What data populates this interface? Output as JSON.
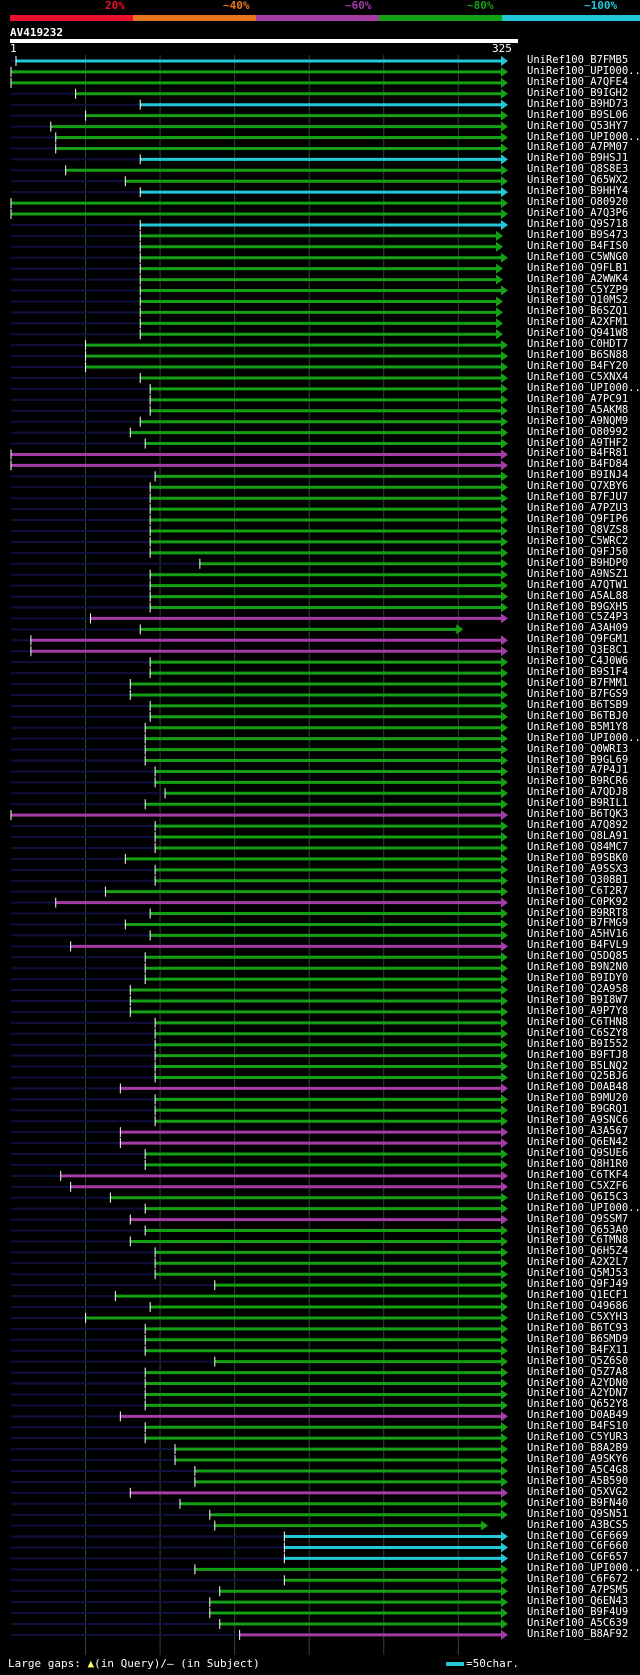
{
  "scale": {
    "labels": [
      "20%",
      "~40%",
      "~60%",
      "~80%",
      "~100%"
    ],
    "colors": [
      "#e8102a",
      "#e8761e",
      "#a43ca6",
      "#14a014",
      "#22c8d8"
    ]
  },
  "query": {
    "name": "AV419232",
    "start": "1",
    "end": "325"
  },
  "colors": {
    "cyan": "#22c8d8",
    "green": "#14a014",
    "magenta": "#a43ca6",
    "marker": "#ffff66",
    "dark": "#101040",
    "grid": "#2a4a2a"
  },
  "hits": [
    {
      "name": "UniRef100_B7FMB5",
      "c": "cyan",
      "s": 0.01,
      "e": 1.0
    },
    {
      "name": "UniRef100_UPI000...",
      "c": "green",
      "s": 0.0,
      "e": 1.0
    },
    {
      "name": "UniRef100_A7QFE4",
      "c": "green",
      "s": 0.0,
      "e": 1.0
    },
    {
      "name": "UniRef100_B9IGH2",
      "c": "green",
      "s": 0.13,
      "e": 1.0
    },
    {
      "name": "UniRef100_B9HD73",
      "c": "cyan",
      "s": 0.26,
      "e": 1.0
    },
    {
      "name": "UniRef100_B9SL06",
      "c": "green",
      "s": 0.15,
      "e": 1.0
    },
    {
      "name": "UniRef100_Q53HY7",
      "c": "green",
      "s": 0.08,
      "e": 1.0
    },
    {
      "name": "UniRef100_UPI000...",
      "c": "green",
      "s": 0.09,
      "e": 1.0
    },
    {
      "name": "UniRef100_A7PM07",
      "c": "green",
      "s": 0.09,
      "e": 1.0
    },
    {
      "name": "UniRef100_B9HSJ1",
      "c": "cyan",
      "s": 0.26,
      "e": 1.0
    },
    {
      "name": "UniRef100_Q8S8E3",
      "c": "green",
      "s": 0.11,
      "e": 1.0
    },
    {
      "name": "UniRef100_Q65WX2",
      "c": "green",
      "s": 0.23,
      "e": 1.0
    },
    {
      "name": "UniRef100_B9HHY4",
      "c": "cyan",
      "s": 0.26,
      "e": 1.0
    },
    {
      "name": "UniRef100_O80920",
      "c": "green",
      "s": 0.0,
      "e": 1.0
    },
    {
      "name": "UniRef100_A7Q3P6",
      "c": "green",
      "s": 0.0,
      "e": 1.0
    },
    {
      "name": "UniRef100_Q9S718",
      "c": "cyan",
      "s": 0.26,
      "e": 1.0
    },
    {
      "name": "UniRef100_B9S473",
      "c": "green",
      "s": 0.26,
      "e": 0.99
    },
    {
      "name": "UniRef100_B4FIS0",
      "c": "green",
      "s": 0.26,
      "e": 0.99
    },
    {
      "name": "UniRef100_C5WNG0",
      "c": "green",
      "s": 0.26,
      "e": 1.0
    },
    {
      "name": "UniRef100_Q9FLB1",
      "c": "green",
      "s": 0.26,
      "e": 0.99
    },
    {
      "name": "UniRef100_A2WWK4",
      "c": "green",
      "s": 0.26,
      "e": 0.99
    },
    {
      "name": "UniRef100_C5YZP9",
      "c": "green",
      "s": 0.26,
      "e": 1.0
    },
    {
      "name": "UniRef100_Q10MS2",
      "c": "green",
      "s": 0.26,
      "e": 0.99
    },
    {
      "name": "UniRef100_B6SZQ1",
      "c": "green",
      "s": 0.26,
      "e": 0.99
    },
    {
      "name": "UniRef100_A2XFM1",
      "c": "green",
      "s": 0.26,
      "e": 0.99
    },
    {
      "name": "UniRef100_Q941W8",
      "c": "green",
      "s": 0.26,
      "e": 0.99
    },
    {
      "name": "UniRef100_C0HDT7",
      "c": "green",
      "s": 0.15,
      "e": 1.0
    },
    {
      "name": "UniRef100_B6SN88",
      "c": "green",
      "s": 0.15,
      "e": 1.0
    },
    {
      "name": "UniRef100_B4FY20",
      "c": "green",
      "s": 0.15,
      "e": 1.0
    },
    {
      "name": "UniRef100_C5XNX4",
      "c": "green",
      "s": 0.26,
      "e": 1.0
    },
    {
      "name": "UniRef100_UPI000...",
      "c": "green",
      "s": 0.28,
      "e": 1.0
    },
    {
      "name": "UniRef100_A7PC91",
      "c": "green",
      "s": 0.28,
      "e": 1.0
    },
    {
      "name": "UniRef100_A5AKM8",
      "c": "green",
      "s": 0.28,
      "e": 1.0
    },
    {
      "name": "UniRef100_A9NQM9",
      "c": "green",
      "s": 0.26,
      "e": 1.0
    },
    {
      "name": "UniRef100_O80992",
      "c": "green",
      "s": 0.24,
      "e": 1.0
    },
    {
      "name": "UniRef100_A9THF2",
      "c": "green",
      "s": 0.27,
      "e": 1.0
    },
    {
      "name": "UniRef100_B4FR81",
      "c": "magenta",
      "s": 0.0,
      "e": 1.0
    },
    {
      "name": "UniRef100_B4FD84",
      "c": "magenta",
      "s": 0.0,
      "e": 1.0
    },
    {
      "name": "UniRef100_B9INJ4",
      "c": "green",
      "s": 0.29,
      "e": 1.0
    },
    {
      "name": "UniRef100_Q7XBY6",
      "c": "green",
      "s": 0.28,
      "e": 1.0
    },
    {
      "name": "UniRef100_B7FJU7",
      "c": "green",
      "s": 0.28,
      "e": 1.0
    },
    {
      "name": "UniRef100_A7PZU3",
      "c": "green",
      "s": 0.28,
      "e": 1.0
    },
    {
      "name": "UniRef100_Q9FIP6",
      "c": "green",
      "s": 0.28,
      "e": 1.0
    },
    {
      "name": "UniRef100_Q8VZS8",
      "c": "green",
      "s": 0.28,
      "e": 1.0
    },
    {
      "name": "UniRef100_C5WRC2",
      "c": "green",
      "s": 0.28,
      "e": 1.0
    },
    {
      "name": "UniRef100_Q9FJ50",
      "c": "green",
      "s": 0.28,
      "e": 1.0
    },
    {
      "name": "UniRef100_B9HDP0",
      "c": "green",
      "s": 0.38,
      "e": 1.0
    },
    {
      "name": "UniRef100_A9NSZ1",
      "c": "green",
      "s": 0.28,
      "e": 1.0
    },
    {
      "name": "UniRef100_A7QTW1",
      "c": "green",
      "s": 0.28,
      "e": 1.0
    },
    {
      "name": "UniRef100_A5AL88",
      "c": "green",
      "s": 0.28,
      "e": 1.0
    },
    {
      "name": "UniRef100_B9GXH5",
      "c": "green",
      "s": 0.28,
      "e": 1.0
    },
    {
      "name": "UniRef100_C5Z4P3",
      "c": "magenta",
      "s": 0.16,
      "e": 1.0
    },
    {
      "name": "UniRef100_A3AH09",
      "c": "green",
      "s": 0.26,
      "e": 0.91
    },
    {
      "name": "UniRef100_Q9FGM1",
      "c": "magenta",
      "s": 0.04,
      "e": 1.0
    },
    {
      "name": "UniRef100_Q3E8C1",
      "c": "magenta",
      "s": 0.04,
      "e": 1.0
    },
    {
      "name": "UniRef100_C4J0W6",
      "c": "green",
      "s": 0.28,
      "e": 1.0
    },
    {
      "name": "UniRef100_B9S1F4",
      "c": "green",
      "s": 0.28,
      "e": 1.0
    },
    {
      "name": "UniRef100_B7FMM1",
      "c": "green",
      "s": 0.24,
      "e": 1.0
    },
    {
      "name": "UniRef100_B7FGS9",
      "c": "green",
      "s": 0.24,
      "e": 1.0
    },
    {
      "name": "UniRef100_B6TSB9",
      "c": "green",
      "s": 0.28,
      "e": 1.0
    },
    {
      "name": "UniRef100_B6TBJ0",
      "c": "green",
      "s": 0.28,
      "e": 1.0
    },
    {
      "name": "UniRef100_B5M1Y8",
      "c": "green",
      "s": 0.27,
      "e": 1.0
    },
    {
      "name": "UniRef100_UPI000...",
      "c": "green",
      "s": 0.27,
      "e": 1.0
    },
    {
      "name": "UniRef100_Q0WRI3",
      "c": "green",
      "s": 0.27,
      "e": 1.0
    },
    {
      "name": "UniRef100_B9GL69",
      "c": "green",
      "s": 0.27,
      "e": 1.0
    },
    {
      "name": "UniRef100_A7P4J1",
      "c": "green",
      "s": 0.29,
      "e": 1.0
    },
    {
      "name": "UniRef100_B9RCR6",
      "c": "green",
      "s": 0.29,
      "e": 1.0
    },
    {
      "name": "UniRef100_A7QDJ8",
      "c": "green",
      "s": 0.31,
      "e": 1.0
    },
    {
      "name": "UniRef100_B9RIL1",
      "c": "green",
      "s": 0.27,
      "e": 1.0
    },
    {
      "name": "UniRef100_B6TQK3",
      "c": "magenta",
      "s": 0.0,
      "e": 1.0
    },
    {
      "name": "UniRef100_A7Q892",
      "c": "green",
      "s": 0.29,
      "e": 1.0
    },
    {
      "name": "UniRef100_Q8LA91",
      "c": "green",
      "s": 0.29,
      "e": 1.0
    },
    {
      "name": "UniRef100_Q84MC7",
      "c": "green",
      "s": 0.29,
      "e": 1.0
    },
    {
      "name": "UniRef100_B9SBK0",
      "c": "green",
      "s": 0.23,
      "e": 1.0
    },
    {
      "name": "UniRef100_A9SSX3",
      "c": "green",
      "s": 0.29,
      "e": 1.0
    },
    {
      "name": "UniRef100_Q308B1",
      "c": "green",
      "s": 0.29,
      "e": 1.0
    },
    {
      "name": "UniRef100_C6T2R7",
      "c": "green",
      "s": 0.19,
      "e": 1.0
    },
    {
      "name": "UniRef100_C0PK92",
      "c": "magenta",
      "s": 0.09,
      "e": 1.0
    },
    {
      "name": "UniRef100_B9RRT8",
      "c": "green",
      "s": 0.28,
      "e": 1.0
    },
    {
      "name": "UniRef100_B7FMG9",
      "c": "green",
      "s": 0.23,
      "e": 1.0
    },
    {
      "name": "UniRef100_A5HV16",
      "c": "green",
      "s": 0.28,
      "e": 1.0
    },
    {
      "name": "UniRef100_B4FVL9",
      "c": "magenta",
      "s": 0.12,
      "e": 1.0
    },
    {
      "name": "UniRef100_Q5DQ85",
      "c": "green",
      "s": 0.27,
      "e": 1.0
    },
    {
      "name": "UniRef100_B9N2N0",
      "c": "green",
      "s": 0.27,
      "e": 1.0
    },
    {
      "name": "UniRef100_B9IDY0",
      "c": "green",
      "s": 0.27,
      "e": 1.0
    },
    {
      "name": "UniRef100_Q2A958",
      "c": "green",
      "s": 0.24,
      "e": 1.0
    },
    {
      "name": "UniRef100_B9I8W7",
      "c": "green",
      "s": 0.24,
      "e": 1.0
    },
    {
      "name": "UniRef100_A9P7Y8",
      "c": "green",
      "s": 0.24,
      "e": 1.0
    },
    {
      "name": "UniRef100_C6THN8",
      "c": "green",
      "s": 0.29,
      "e": 1.0
    },
    {
      "name": "UniRef100_C6SZY8",
      "c": "green",
      "s": 0.29,
      "e": 1.0
    },
    {
      "name": "UniRef100_B9I552",
      "c": "green",
      "s": 0.29,
      "e": 1.0
    },
    {
      "name": "UniRef100_B9FTJ8",
      "c": "green",
      "s": 0.29,
      "e": 1.0
    },
    {
      "name": "UniRef100_B5LNQ2",
      "c": "green",
      "s": 0.29,
      "e": 1.0
    },
    {
      "name": "UniRef100_Q25BJ6",
      "c": "green",
      "s": 0.29,
      "e": 1.0
    },
    {
      "name": "UniRef100_D0AB48",
      "c": "magenta",
      "s": 0.22,
      "e": 1.0
    },
    {
      "name": "UniRef100_B9MU20",
      "c": "green",
      "s": 0.29,
      "e": 1.0
    },
    {
      "name": "UniRef100_B9GRQ1",
      "c": "green",
      "s": 0.29,
      "e": 1.0
    },
    {
      "name": "UniRef100_A9SNC6",
      "c": "green",
      "s": 0.29,
      "e": 1.0
    },
    {
      "name": "UniRef100_A3A567",
      "c": "magenta",
      "s": 0.22,
      "e": 1.0
    },
    {
      "name": "UniRef100_Q6EN42",
      "c": "magenta",
      "s": 0.22,
      "e": 1.0
    },
    {
      "name": "UniRef100_Q9SUE6",
      "c": "green",
      "s": 0.27,
      "e": 1.0
    },
    {
      "name": "UniRef100_Q8H1R0",
      "c": "green",
      "s": 0.27,
      "e": 1.0
    },
    {
      "name": "UniRef100_C6TKF4",
      "c": "magenta",
      "s": 0.1,
      "e": 1.0
    },
    {
      "name": "UniRef100_C5XZF6",
      "c": "magenta",
      "s": 0.12,
      "e": 1.0
    },
    {
      "name": "UniRef100_Q6I5C3",
      "c": "green",
      "s": 0.2,
      "e": 1.0
    },
    {
      "name": "UniRef100_UPI000...",
      "c": "green",
      "s": 0.27,
      "e": 1.0
    },
    {
      "name": "UniRef100_Q9SSM7",
      "c": "magenta",
      "s": 0.24,
      "e": 1.0
    },
    {
      "name": "UniRef100_Q653A0",
      "c": "green",
      "s": 0.27,
      "e": 1.0
    },
    {
      "name": "UniRef100_C6TMN8",
      "c": "green",
      "s": 0.24,
      "e": 1.0
    },
    {
      "name": "UniRef100_Q6H5Z4",
      "c": "green",
      "s": 0.29,
      "e": 1.0
    },
    {
      "name": "UniRef100_A2X2L7",
      "c": "green",
      "s": 0.29,
      "e": 1.0
    },
    {
      "name": "UniRef100_Q5MJ53",
      "c": "green",
      "s": 0.29,
      "e": 1.0
    },
    {
      "name": "UniRef100_Q9FJ49",
      "c": "green",
      "s": 0.41,
      "e": 1.0
    },
    {
      "name": "UniRef100_Q1ECF1",
      "c": "green",
      "s": 0.21,
      "e": 1.0
    },
    {
      "name": "UniRef100_O49686",
      "c": "green",
      "s": 0.28,
      "e": 1.0
    },
    {
      "name": "UniRef100_C5XYH3",
      "c": "green",
      "s": 0.15,
      "e": 1.0
    },
    {
      "name": "UniRef100_B6TC93",
      "c": "green",
      "s": 0.27,
      "e": 1.0
    },
    {
      "name": "UniRef100_B6SMD9",
      "c": "green",
      "s": 0.27,
      "e": 1.0
    },
    {
      "name": "UniRef100_B4FX11",
      "c": "green",
      "s": 0.27,
      "e": 1.0
    },
    {
      "name": "UniRef100_Q5Z6S0",
      "c": "green",
      "s": 0.41,
      "e": 1.0
    },
    {
      "name": "UniRef100_Q5Z7A8",
      "c": "green",
      "s": 0.27,
      "e": 1.0
    },
    {
      "name": "UniRef100_A2YDN0",
      "c": "green",
      "s": 0.27,
      "e": 1.0
    },
    {
      "name": "UniRef100_A2YDN7",
      "c": "green",
      "s": 0.27,
      "e": 1.0
    },
    {
      "name": "UniRef100_Q652Y8",
      "c": "green",
      "s": 0.27,
      "e": 1.0
    },
    {
      "name": "UniRef100_D0AB49",
      "c": "magenta",
      "s": 0.22,
      "e": 1.0
    },
    {
      "name": "UniRef100_B4FS10",
      "c": "green",
      "s": 0.27,
      "e": 1.0
    },
    {
      "name": "UniRef100_C5YUR3",
      "c": "green",
      "s": 0.27,
      "e": 1.0
    },
    {
      "name": "UniRef100_B8A2B9",
      "c": "green",
      "s": 0.33,
      "e": 1.0
    },
    {
      "name": "UniRef100_A9SKY6",
      "c": "green",
      "s": 0.33,
      "e": 1.0
    },
    {
      "name": "UniRef100_A5C4G8",
      "c": "green",
      "s": 0.37,
      "e": 1.0
    },
    {
      "name": "UniRef100_A5B590",
      "c": "green",
      "s": 0.37,
      "e": 1.0
    },
    {
      "name": "UniRef100_Q5XVG2",
      "c": "magenta",
      "s": 0.24,
      "e": 1.0
    },
    {
      "name": "UniRef100_B9FN40",
      "c": "green",
      "s": 0.34,
      "e": 1.0
    },
    {
      "name": "UniRef100_Q9SN51",
      "c": "green",
      "s": 0.4,
      "e": 1.0
    },
    {
      "name": "UniRef100_A3BCS5",
      "c": "green",
      "s": 0.41,
      "e": 0.96
    },
    {
      "name": "UniRef100_C6F669",
      "c": "cyan",
      "s": 0.55,
      "e": 1.0
    },
    {
      "name": "UniRef100_C6F660",
      "c": "cyan",
      "s": 0.55,
      "e": 1.0
    },
    {
      "name": "UniRef100_C6F657",
      "c": "cyan",
      "s": 0.55,
      "e": 1.0
    },
    {
      "name": "UniRef100_UPI000...",
      "c": "green",
      "s": 0.37,
      "e": 1.0
    },
    {
      "name": "UniRef100_C6F672",
      "c": "green",
      "s": 0.55,
      "e": 1.0
    },
    {
      "name": "UniRef100_A7PSM5",
      "c": "green",
      "s": 0.42,
      "e": 1.0
    },
    {
      "name": "UniRef100_Q6EN43",
      "c": "green",
      "s": 0.4,
      "e": 1.0
    },
    {
      "name": "UniRef100_B9F4U9",
      "c": "green",
      "s": 0.4,
      "e": 1.0
    },
    {
      "name": "UniRef100_A5C639",
      "c": "green",
      "s": 0.42,
      "e": 1.0
    },
    {
      "name": "UniRef100_B8AF92",
      "c": "magenta",
      "s": 0.46,
      "e": 1.0
    }
  ],
  "footer": {
    "prefix": "Large gaps:",
    "marker": "▲",
    "query_text": "(in Query)/",
    "subject_marker": "–",
    "subject_text": " (in Subject)",
    "legend": "=50char."
  }
}
